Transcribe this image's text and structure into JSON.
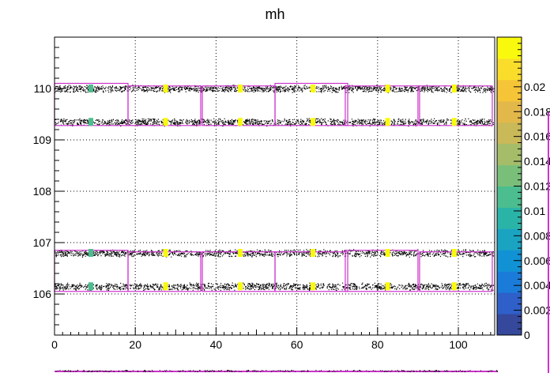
{
  "chart_data": {
    "type": "heatmap",
    "title": "mh",
    "xlabel": "",
    "ylabel": "",
    "xlim": [
      0,
      109
    ],
    "ylim": [
      105.2,
      111.0
    ],
    "grid": true,
    "x_ticks": [
      "0",
      "20",
      "40",
      "60",
      "80",
      "100"
    ],
    "x_tick_values": [
      0,
      20,
      40,
      60,
      80,
      100
    ],
    "y_ticks": [
      "106",
      "107",
      "108",
      "109",
      "110"
    ],
    "y_tick_values": [
      106,
      107,
      108,
      109,
      110
    ],
    "z_range": [
      0,
      0.024
    ],
    "z_ticks": [
      "0",
      "0.002",
      "0.004",
      "0.006",
      "0.008",
      "0.01",
      "0.012",
      "0.014",
      "0.016",
      "0.018",
      "0.02"
    ],
    "z_tick_values": [
      0,
      0.002,
      0.004,
      0.006,
      0.008,
      0.01,
      0.012,
      0.014,
      0.016,
      0.018,
      0.02
    ],
    "palette": [
      "#35489b",
      "#2f5fc9",
      "#1b7bd9",
      "#1192d4",
      "#1aa4c2",
      "#2ab4a8",
      "#4bbd8e",
      "#7abf79",
      "#a5bd68",
      "#c9b958",
      "#e3b84a",
      "#f5c437",
      "#fadd2a",
      "#f9f90e"
    ],
    "band_y_ranges": [
      [
        109.28,
        110.05
      ],
      [
        106.05,
        106.82
      ]
    ],
    "point_y_values": [
      110.0,
      109.35,
      106.8,
      106.15
    ],
    "point_x_values": [
      9,
      27.5,
      46,
      64,
      82.5,
      99
    ],
    "points": [
      {
        "x": 9,
        "y": 110.0,
        "z": 0.011
      },
      {
        "x": 27.5,
        "y": 110.0,
        "z": 0.024
      },
      {
        "x": 46,
        "y": 110.0,
        "z": 0.024
      },
      {
        "x": 64,
        "y": 110.0,
        "z": 0.024
      },
      {
        "x": 82.5,
        "y": 110.0,
        "z": 0.024
      },
      {
        "x": 99,
        "y": 110.0,
        "z": 0.024
      },
      {
        "x": 9,
        "y": 109.35,
        "z": 0.011
      },
      {
        "x": 27.5,
        "y": 109.35,
        "z": 0.024
      },
      {
        "x": 46,
        "y": 109.35,
        "z": 0.024
      },
      {
        "x": 64,
        "y": 109.35,
        "z": 0.024
      },
      {
        "x": 82.5,
        "y": 109.35,
        "z": 0.024
      },
      {
        "x": 99,
        "y": 109.35,
        "z": 0.024
      },
      {
        "x": 9,
        "y": 106.8,
        "z": 0.011
      },
      {
        "x": 27.5,
        "y": 106.8,
        "z": 0.024
      },
      {
        "x": 46,
        "y": 106.8,
        "z": 0.024
      },
      {
        "x": 64,
        "y": 106.8,
        "z": 0.024
      },
      {
        "x": 82.5,
        "y": 106.8,
        "z": 0.024
      },
      {
        "x": 99,
        "y": 106.8,
        "z": 0.024
      },
      {
        "x": 9,
        "y": 106.15,
        "z": 0.011
      },
      {
        "x": 27.5,
        "y": 106.15,
        "z": 0.024
      },
      {
        "x": 46,
        "y": 106.15,
        "z": 0.024
      },
      {
        "x": 64,
        "y": 106.15,
        "z": 0.024
      },
      {
        "x": 82.5,
        "y": 106.15,
        "z": 0.024
      },
      {
        "x": 99,
        "y": 106.15,
        "z": 0.024
      }
    ],
    "boxes": [
      {
        "x0": 0,
        "x1": 18.2,
        "y0": 109.28,
        "y1": 110.1
      },
      {
        "x0": 18.2,
        "x1": 36.2,
        "y0": 109.28,
        "y1": 110.05
      },
      {
        "x0": 36.6,
        "x1": 54.6,
        "y0": 109.28,
        "y1": 110.05
      },
      {
        "x0": 54.6,
        "x1": 72.6,
        "y0": 109.28,
        "y1": 110.1
      },
      {
        "x0": 72.0,
        "x1": 90.0,
        "y0": 109.28,
        "y1": 110.05
      },
      {
        "x0": 90.4,
        "x1": 108.4,
        "y0": 109.28,
        "y1": 110.05
      },
      {
        "x0": 0,
        "x1": 18.2,
        "y0": 106.05,
        "y1": 106.85
      },
      {
        "x0": 18.2,
        "x1": 36.2,
        "y0": 106.05,
        "y1": 106.82
      },
      {
        "x0": 36.6,
        "x1": 54.6,
        "y0": 106.05,
        "y1": 106.82
      },
      {
        "x0": 54.6,
        "x1": 72.6,
        "y0": 106.05,
        "y1": 106.82
      },
      {
        "x0": 72.0,
        "x1": 90.0,
        "y0": 106.05,
        "y1": 106.85
      },
      {
        "x0": 90.4,
        "x1": 108.4,
        "y0": 106.05,
        "y1": 106.82
      }
    ],
    "colors": {
      "box_outline": "#cc33cc",
      "scatter": "#000000",
      "grid": "#000000"
    }
  }
}
